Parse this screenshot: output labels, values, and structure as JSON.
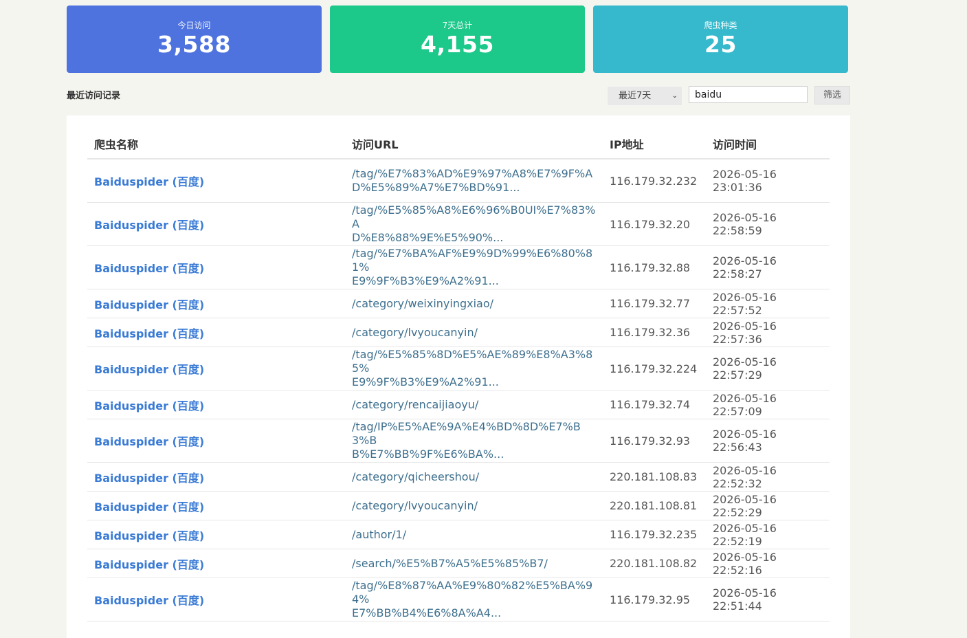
{
  "stats": {
    "today": {
      "label": "今日访问",
      "value": "3,588"
    },
    "week": {
      "label": "7天总计",
      "value": "4,155"
    },
    "types": {
      "label": "爬虫种类",
      "value": "25"
    }
  },
  "colors": {
    "card_today": "#4e73df",
    "card_week": "#1cc88a",
    "card_types": "#36b9cc",
    "link": "#3a7bd5"
  },
  "section_title": "最近访问记录",
  "filter": {
    "range_selected": "最近7天",
    "search_value": "baidu",
    "submit_label": "筛选"
  },
  "table": {
    "headers": [
      "爬虫名称",
      "访问URL",
      "IP地址",
      "访问时间"
    ],
    "rows": [
      {
        "name": "Baiduspider (百度)",
        "url": [
          "/tag/%E7%83%AD%E9%97%A8%E7%9F%A",
          "D%E5%89%A7%E7%BD%91..."
        ],
        "ip": "116.179.32.232",
        "time": "2026-05-16 23:01:36"
      },
      {
        "name": "Baiduspider (百度)",
        "url": [
          "/tag/%E5%85%A8%E6%96%B0UI%E7%83%A",
          "D%E8%88%9E%E5%90%..."
        ],
        "ip": "116.179.32.20",
        "time": "2026-05-16 22:58:59"
      },
      {
        "name": "Baiduspider (百度)",
        "url": [
          "/tag/%E7%BA%AF%E9%9D%99%E6%80%81%",
          "E9%9F%B3%E9%A2%91..."
        ],
        "ip": "116.179.32.88",
        "time": "2026-05-16 22:58:27"
      },
      {
        "name": "Baiduspider (百度)",
        "url": [
          "/category/weixinyingxiao/"
        ],
        "ip": "116.179.32.77",
        "time": "2026-05-16 22:57:52"
      },
      {
        "name": "Baiduspider (百度)",
        "url": [
          "/category/lvyoucanyin/"
        ],
        "ip": "116.179.32.36",
        "time": "2026-05-16 22:57:36"
      },
      {
        "name": "Baiduspider (百度)",
        "url": [
          "/tag/%E5%85%8D%E5%AE%89%E8%A3%85%",
          "E9%9F%B3%E9%A2%91..."
        ],
        "ip": "116.179.32.224",
        "time": "2026-05-16 22:57:29"
      },
      {
        "name": "Baiduspider (百度)",
        "url": [
          "/category/rencaijiaoyu/"
        ],
        "ip": "116.179.32.74",
        "time": "2026-05-16 22:57:09"
      },
      {
        "name": "Baiduspider (百度)",
        "url": [
          "/tag/IP%E5%AE%9A%E4%BD%8D%E7%B3%B",
          "B%E7%BB%9F%E6%BA%..."
        ],
        "ip": "116.179.32.93",
        "time": "2026-05-16 22:56:43"
      },
      {
        "name": "Baiduspider (百度)",
        "url": [
          "/category/qicheershou/"
        ],
        "ip": "220.181.108.83",
        "time": "2026-05-16 22:52:32"
      },
      {
        "name": "Baiduspider (百度)",
        "url": [
          "/category/lvyoucanyin/"
        ],
        "ip": "220.181.108.81",
        "time": "2026-05-16 22:52:29"
      },
      {
        "name": "Baiduspider (百度)",
        "url": [
          "/author/1/"
        ],
        "ip": "116.179.32.235",
        "time": "2026-05-16 22:52:19"
      },
      {
        "name": "Baiduspider (百度)",
        "url": [
          "/search/%E5%B7%A5%E5%85%B7/"
        ],
        "ip": "220.181.108.82",
        "time": "2026-05-16 22:52:16"
      },
      {
        "name": "Baiduspider (百度)",
        "url": [
          "/tag/%E8%87%AA%E9%80%82%E5%BA%94%",
          "E7%BB%B4%E6%8A%A4..."
        ],
        "ip": "116.179.32.95",
        "time": "2026-05-16 22:51:44"
      }
    ]
  }
}
